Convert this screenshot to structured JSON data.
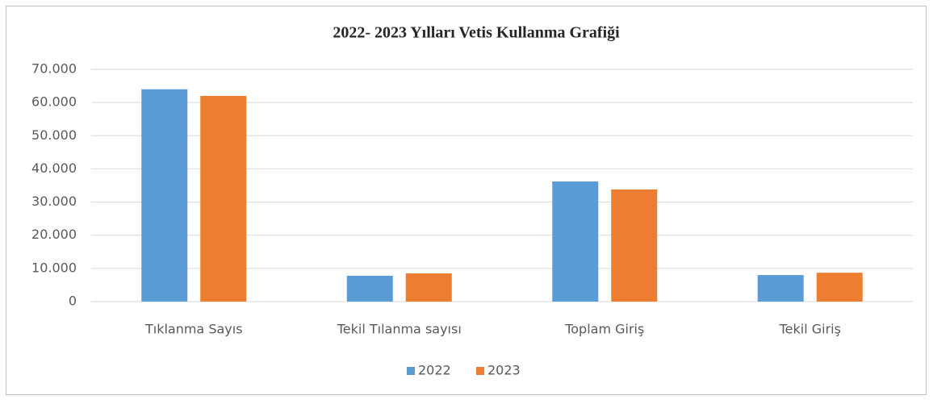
{
  "chart_data": {
    "type": "bar",
    "title": "2022- 2023 Yılları  Vetis Kullanma Grafiği",
    "categories": [
      "Tıklanma Sayıs",
      "Tekil Tılanma sayısı",
      "Toplam Giriş",
      "Tekil Giriş"
    ],
    "series": [
      {
        "name": "2022",
        "color": "#5b9bd5",
        "values": [
          64000,
          7800,
          36200,
          8000
        ]
      },
      {
        "name": "2023",
        "color": "#ed7d31",
        "values": [
          62000,
          8500,
          33800,
          8700
        ]
      }
    ],
    "ylim": [
      0,
      70000
    ],
    "yticks": [
      0,
      {
        "value": 10000,
        "label": "10.000"
      },
      {
        "value": 20000,
        "label": "20.000"
      },
      {
        "value": 30000,
        "label": "30.000"
      },
      {
        "value": 40000,
        "label": "40.000"
      },
      {
        "value": 50000,
        "label": "50.000"
      },
      {
        "value": 60000,
        "label": "60.000"
      },
      {
        "value": 70000,
        "label": "70.000"
      }
    ],
    "grid": true,
    "legend": "bottom"
  }
}
